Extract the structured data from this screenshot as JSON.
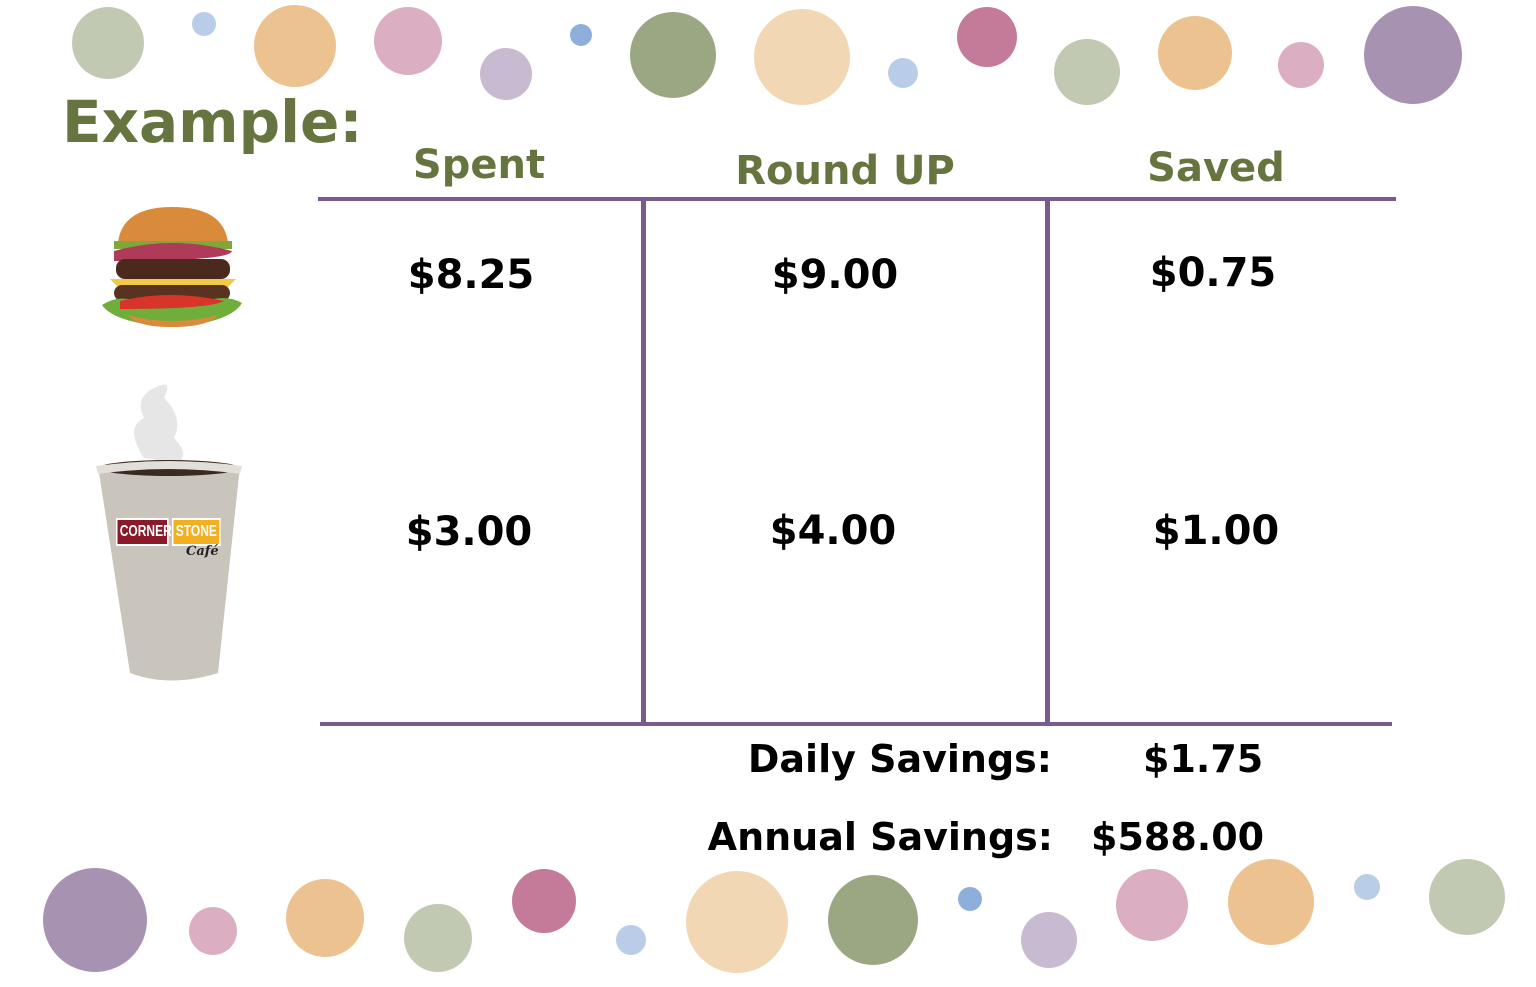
{
  "title": "Example:",
  "columns": [
    "Spent",
    "Round UP",
    "Saved"
  ],
  "rows": [
    {
      "item_icon": "burger-image",
      "spent": "$8.25",
      "round_up": "$9.00",
      "saved": "$0.75"
    },
    {
      "item_icon": "coffee-cup-image",
      "spent": "$3.00",
      "round_up": "$4.00",
      "saved": "$1.00"
    }
  ],
  "summary": {
    "daily_label": "Daily Savings:",
    "daily_value": "$1.75",
    "annual_label": "Annual Savings:",
    "annual_value": "$588.00"
  },
  "cup_logo": {
    "word1": "CORNER",
    "word2": "STONE",
    "word3": "Café"
  },
  "colors": {
    "heading": "#66753f",
    "table_lines": "#7b5a8e",
    "dots": [
      "#c1c9b3",
      "#b9cde8",
      "#ecc291",
      "#dcaec2",
      "#c8bad0",
      "#8eaedb",
      "#9ba783",
      "#f2d7b5",
      "#c47b99",
      "#a792b2"
    ]
  }
}
